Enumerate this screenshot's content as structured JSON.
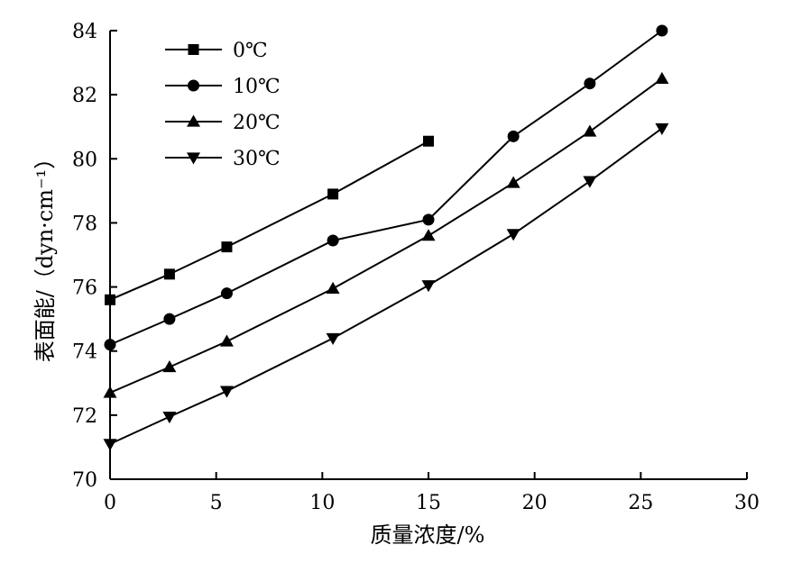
{
  "chart_data": {
    "type": "line",
    "title": "",
    "xlabel": "质量浓度/%",
    "ylabel": "表面能/（dyn·cm⁻¹）",
    "xlim": [
      0,
      30
    ],
    "ylim": [
      70,
      84
    ],
    "xticks": [
      "0",
      "5",
      "10",
      "15",
      "20",
      "25",
      "30"
    ],
    "yticks": [
      "70",
      "72",
      "74",
      "76",
      "78",
      "80",
      "82",
      "84"
    ],
    "grid": false,
    "legend_position": "top-left",
    "series": [
      {
        "name": "0℃",
        "marker": "square",
        "x": [
          0,
          2.8,
          5.5,
          10.5,
          15
        ],
        "y": [
          75.6,
          76.4,
          77.25,
          78.9,
          80.55
        ]
      },
      {
        "name": "10℃",
        "marker": "circle",
        "x": [
          0,
          2.8,
          5.5,
          10.5,
          15,
          19,
          22.6,
          26
        ],
        "y": [
          74.2,
          75.0,
          75.8,
          77.45,
          78.1,
          80.7,
          82.35,
          84.0
        ]
      },
      {
        "name": "20℃",
        "marker": "triangle-up",
        "x": [
          0,
          2.8,
          5.5,
          10.5,
          15,
          19,
          22.6,
          26
        ],
        "y": [
          72.7,
          73.5,
          74.3,
          75.95,
          77.6,
          79.25,
          80.85,
          82.5
        ]
      },
      {
        "name": "30℃",
        "marker": "triangle-down",
        "x": [
          0,
          2.8,
          5.5,
          10.5,
          15,
          19,
          22.6,
          26
        ],
        "y": [
          71.1,
          71.95,
          72.75,
          74.4,
          76.05,
          77.65,
          79.3,
          80.95
        ]
      }
    ]
  }
}
